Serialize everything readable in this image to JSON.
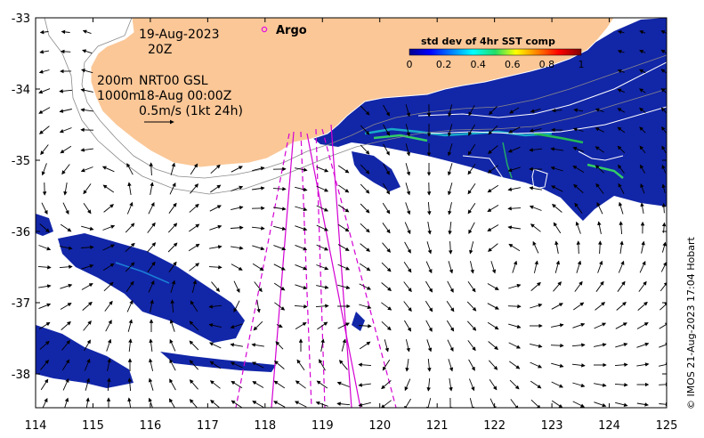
{
  "map": {
    "date_text": "19-Aug-2023",
    "time_text": "20Z",
    "argo_label": "Argo",
    "depth_200_label": "200m",
    "depth_1000_label": "1000m",
    "nrt_label": "NRT00 GSL",
    "nrt_date": "18-Aug 00:00Z",
    "speed_scale_label": "0.5m/s (1kt 24h)",
    "credit": "© IMOS 21-Aug-2023 17:04 Hobart",
    "x_ticks": [
      "114",
      "115",
      "116",
      "117",
      "118",
      "119",
      "120",
      "121",
      "122",
      "123",
      "124",
      "125"
    ],
    "y_ticks": [
      "-33",
      "-34",
      "-35",
      "-36",
      "-37",
      "-38"
    ],
    "colors": {
      "land": "#fbc797",
      "argo_marker": "#e60fe6",
      "track": "#d400d4",
      "sst_background": "#1226a8"
    }
  },
  "colorbar": {
    "title": "std dev of 4hr SST comp",
    "labels": [
      "0",
      "0.2",
      "0.4",
      "0.6",
      "0.8",
      "1"
    ]
  }
}
